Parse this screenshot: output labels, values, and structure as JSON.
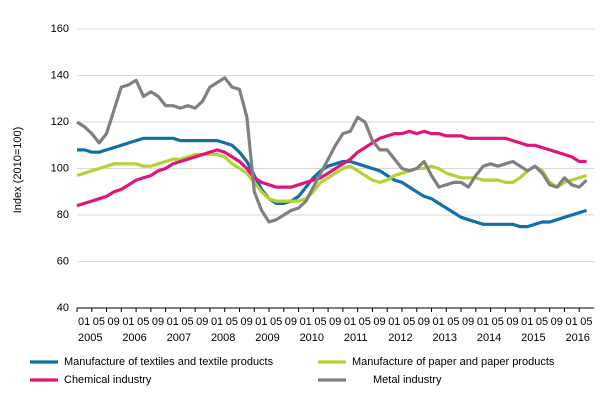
{
  "chart_data": {
    "type": "line",
    "y_label": "Index (2010=100)",
    "x": [
      "2005-01",
      "2005-03",
      "2005-05",
      "2005-07",
      "2005-09",
      "2005-11",
      "2006-01",
      "2006-03",
      "2006-05",
      "2006-07",
      "2006-09",
      "2006-11",
      "2007-01",
      "2007-03",
      "2007-05",
      "2007-07",
      "2007-09",
      "2007-11",
      "2008-01",
      "2008-03",
      "2008-05",
      "2008-07",
      "2008-09",
      "2008-11",
      "2009-01",
      "2009-03",
      "2009-05",
      "2009-07",
      "2009-09",
      "2009-11",
      "2010-01",
      "2010-03",
      "2010-05",
      "2010-07",
      "2010-09",
      "2010-11",
      "2011-01",
      "2011-03",
      "2011-05",
      "2011-07",
      "2011-09",
      "2011-11",
      "2012-01",
      "2012-03",
      "2012-05",
      "2012-07",
      "2012-09",
      "2012-11",
      "2013-01",
      "2013-03",
      "2013-05",
      "2013-07",
      "2013-09",
      "2013-11",
      "2014-01",
      "2014-03",
      "2014-05",
      "2014-07",
      "2014-09",
      "2014-11",
      "2015-01",
      "2015-03",
      "2015-05",
      "2015-07",
      "2015-09",
      "2015-11",
      "2016-01",
      "2016-03",
      "2016-05",
      "2016-07"
    ],
    "series": [
      {
        "name": "Manufacture of textiles and textile products",
        "color": "#1170aa",
        "values": [
          108,
          108,
          107,
          107,
          108,
          109,
          110,
          111,
          112,
          113,
          113,
          113,
          113,
          113,
          112,
          112,
          112,
          112,
          112,
          112,
          111,
          110,
          107,
          103,
          97,
          91,
          87,
          85,
          85,
          86,
          88,
          92,
          96,
          99,
          101,
          102,
          103,
          103,
          102,
          101,
          100,
          99,
          97,
          95,
          94,
          92,
          90,
          88,
          87,
          85,
          83,
          81,
          79,
          78,
          77,
          76,
          76,
          76,
          76,
          76,
          75,
          75,
          76,
          77,
          77,
          78,
          79,
          80,
          81,
          82
        ]
      },
      {
        "name": "Manufacture of paper and paper products",
        "color": "#b6d134",
        "values": [
          97,
          98,
          99,
          100,
          101,
          102,
          102,
          102,
          102,
          101,
          101,
          102,
          103,
          104,
          104,
          105,
          106,
          106,
          106,
          106,
          105,
          102,
          100,
          98,
          94,
          90,
          87,
          86,
          86,
          86,
          86,
          87,
          90,
          94,
          96,
          98,
          100,
          101,
          99,
          97,
          95,
          94,
          95,
          97,
          98,
          99,
          100,
          100,
          101,
          100,
          98,
          97,
          96,
          96,
          96,
          95,
          95,
          95,
          94,
          94,
          96,
          99,
          101,
          99,
          94,
          92,
          94,
          95,
          96,
          97
        ]
      },
      {
        "name": "Chemical industry",
        "color": "#e0147a",
        "values": [
          84,
          85,
          86,
          87,
          88,
          90,
          91,
          93,
          95,
          96,
          97,
          99,
          100,
          102,
          103,
          104,
          105,
          106,
          107,
          108,
          107,
          105,
          103,
          100,
          96,
          94,
          93,
          92,
          92,
          92,
          93,
          94,
          95,
          96,
          98,
          100,
          102,
          104,
          107,
          109,
          111,
          113,
          114,
          115,
          115,
          116,
          115,
          116,
          115,
          115,
          114,
          114,
          114,
          113,
          113,
          113,
          113,
          113,
          113,
          112,
          111,
          110,
          110,
          109,
          108,
          107,
          106,
          105,
          103,
          103
        ]
      },
      {
        "name": "Metal industry",
        "color": "#808080",
        "values": [
          120,
          118,
          115,
          111,
          115,
          125,
          135,
          136,
          138,
          131,
          133,
          131,
          127,
          127,
          126,
          127,
          126,
          129,
          135,
          137,
          139,
          135,
          134,
          122,
          90,
          82,
          77,
          78,
          80,
          82,
          83,
          86,
          92,
          98,
          104,
          110,
          115,
          116,
          122,
          120,
          112,
          108,
          108,
          104,
          100,
          99,
          100,
          103,
          97,
          92,
          93,
          94,
          94,
          92,
          97,
          101,
          102,
          101,
          102,
          103,
          101,
          99,
          101,
          98,
          93,
          92,
          96,
          93,
          92,
          95
        ]
      }
    ],
    "ylim": [
      40,
      160
    ],
    "yticks": [
      40,
      60,
      80,
      100,
      120,
      140,
      160
    ],
    "grid": true,
    "xlim": [
      "2005-01",
      "2016-09"
    ],
    "xticks": [
      {
        "value": "2005-01",
        "label": "01"
      },
      {
        "value": "2005-05",
        "label": "05"
      },
      {
        "value": "2005-09",
        "label": "09"
      },
      {
        "value": "2006-01",
        "label": "01"
      },
      {
        "value": "2006-05",
        "label": "05"
      },
      {
        "value": "2006-09",
        "label": "09"
      },
      {
        "value": "2007-01",
        "label": "01"
      },
      {
        "value": "2007-05",
        "label": "05"
      },
      {
        "value": "2007-09",
        "label": "09"
      },
      {
        "value": "2008-01",
        "label": "01"
      },
      {
        "value": "2008-05",
        "label": "05"
      },
      {
        "value": "2008-09",
        "label": "09"
      },
      {
        "value": "2009-01",
        "label": "01"
      },
      {
        "value": "2009-05",
        "label": "05"
      },
      {
        "value": "2009-09",
        "label": "09"
      },
      {
        "value": "2010-01",
        "label": "01"
      },
      {
        "value": "2010-05",
        "label": "05"
      },
      {
        "value": "2010-09",
        "label": "09"
      },
      {
        "value": "2011-01",
        "label": "01"
      },
      {
        "value": "2011-05",
        "label": "05"
      },
      {
        "value": "2011-09",
        "label": "09"
      },
      {
        "value": "2012-01",
        "label": "01"
      },
      {
        "value": "2012-05",
        "label": "05"
      },
      {
        "value": "2012-09",
        "label": "09"
      },
      {
        "value": "2013-01",
        "label": "01"
      },
      {
        "value": "2013-05",
        "label": "05"
      },
      {
        "value": "2013-09",
        "label": "09"
      },
      {
        "value": "2014-01",
        "label": "01"
      },
      {
        "value": "2014-05",
        "label": "05"
      },
      {
        "value": "2014-09",
        "label": "09"
      },
      {
        "value": "2015-01",
        "label": "01"
      },
      {
        "value": "2015-05",
        "label": "05"
      },
      {
        "value": "2015-09",
        "label": "09"
      },
      {
        "value": "2016-01",
        "label": "01"
      },
      {
        "value": "2016-05",
        "label": "05"
      }
    ],
    "xtick_years": [
      {
        "value": "2005-01",
        "label": "2005"
      },
      {
        "value": "2006-01",
        "label": "2006"
      },
      {
        "value": "2007-01",
        "label": "2007"
      },
      {
        "value": "2008-01",
        "label": "2008"
      },
      {
        "value": "2009-01",
        "label": "2009"
      },
      {
        "value": "2010-01",
        "label": "2010"
      },
      {
        "value": "2011-01",
        "label": "2011"
      },
      {
        "value": "2012-01",
        "label": "2012"
      },
      {
        "value": "2013-01",
        "label": "2013"
      },
      {
        "value": "2014-01",
        "label": "2014"
      },
      {
        "value": "2015-01",
        "label": "2015"
      },
      {
        "value": "2016-01",
        "label": "2016"
      }
    ]
  }
}
